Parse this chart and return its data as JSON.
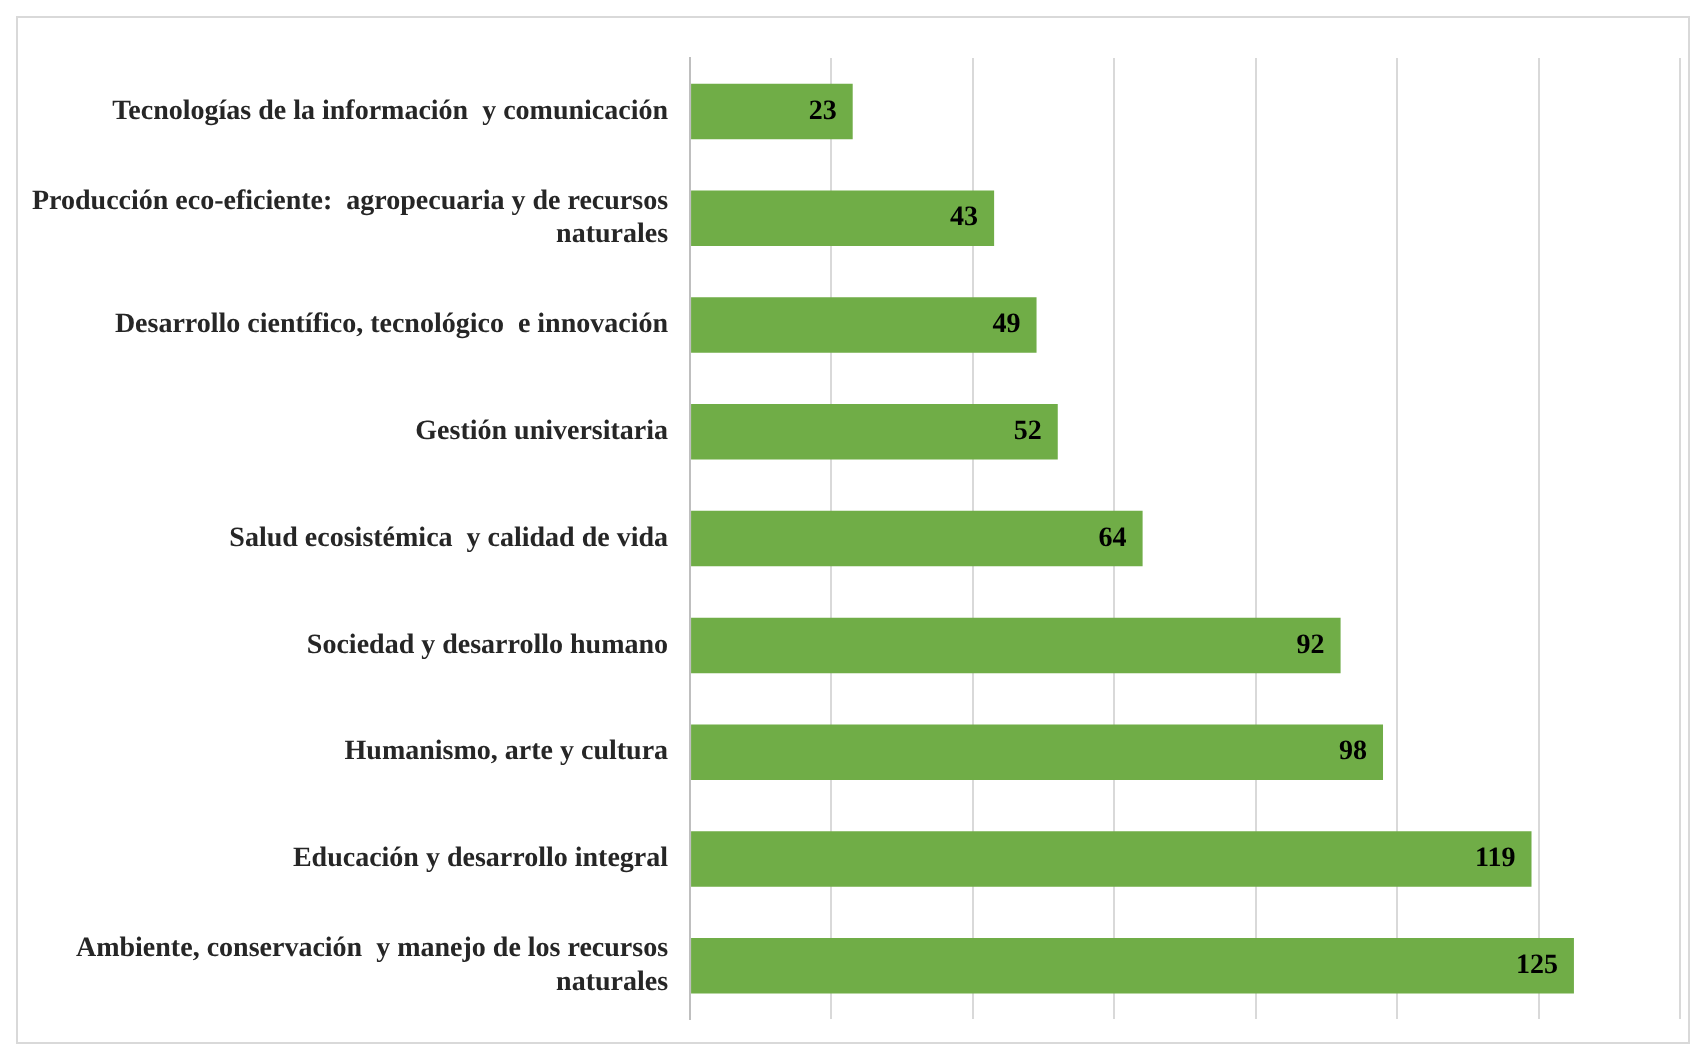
{
  "chart_data": {
    "type": "bar",
    "orientation": "horizontal",
    "categories": [
      "Tecnologías de la información  y comunicación",
      "Producción eco-eficiente:  agropecuaria y de recursos naturales",
      "Desarrollo científico, tecnológico  e innovación",
      "Gestión universitaria",
      "Salud ecosistémica  y calidad de vida",
      "Sociedad y desarrollo humano",
      "Humanismo, arte y cultura",
      "Educación y desarrollo integral",
      "Ambiente, conservación  y manejo de los recursos naturales"
    ],
    "values": [
      23,
      43,
      49,
      52,
      64,
      92,
      98,
      119,
      125
    ],
    "color": "#70ad47",
    "tick_labels": "y",
    "grid": "x",
    "data_labels": true,
    "legend": false
  }
}
